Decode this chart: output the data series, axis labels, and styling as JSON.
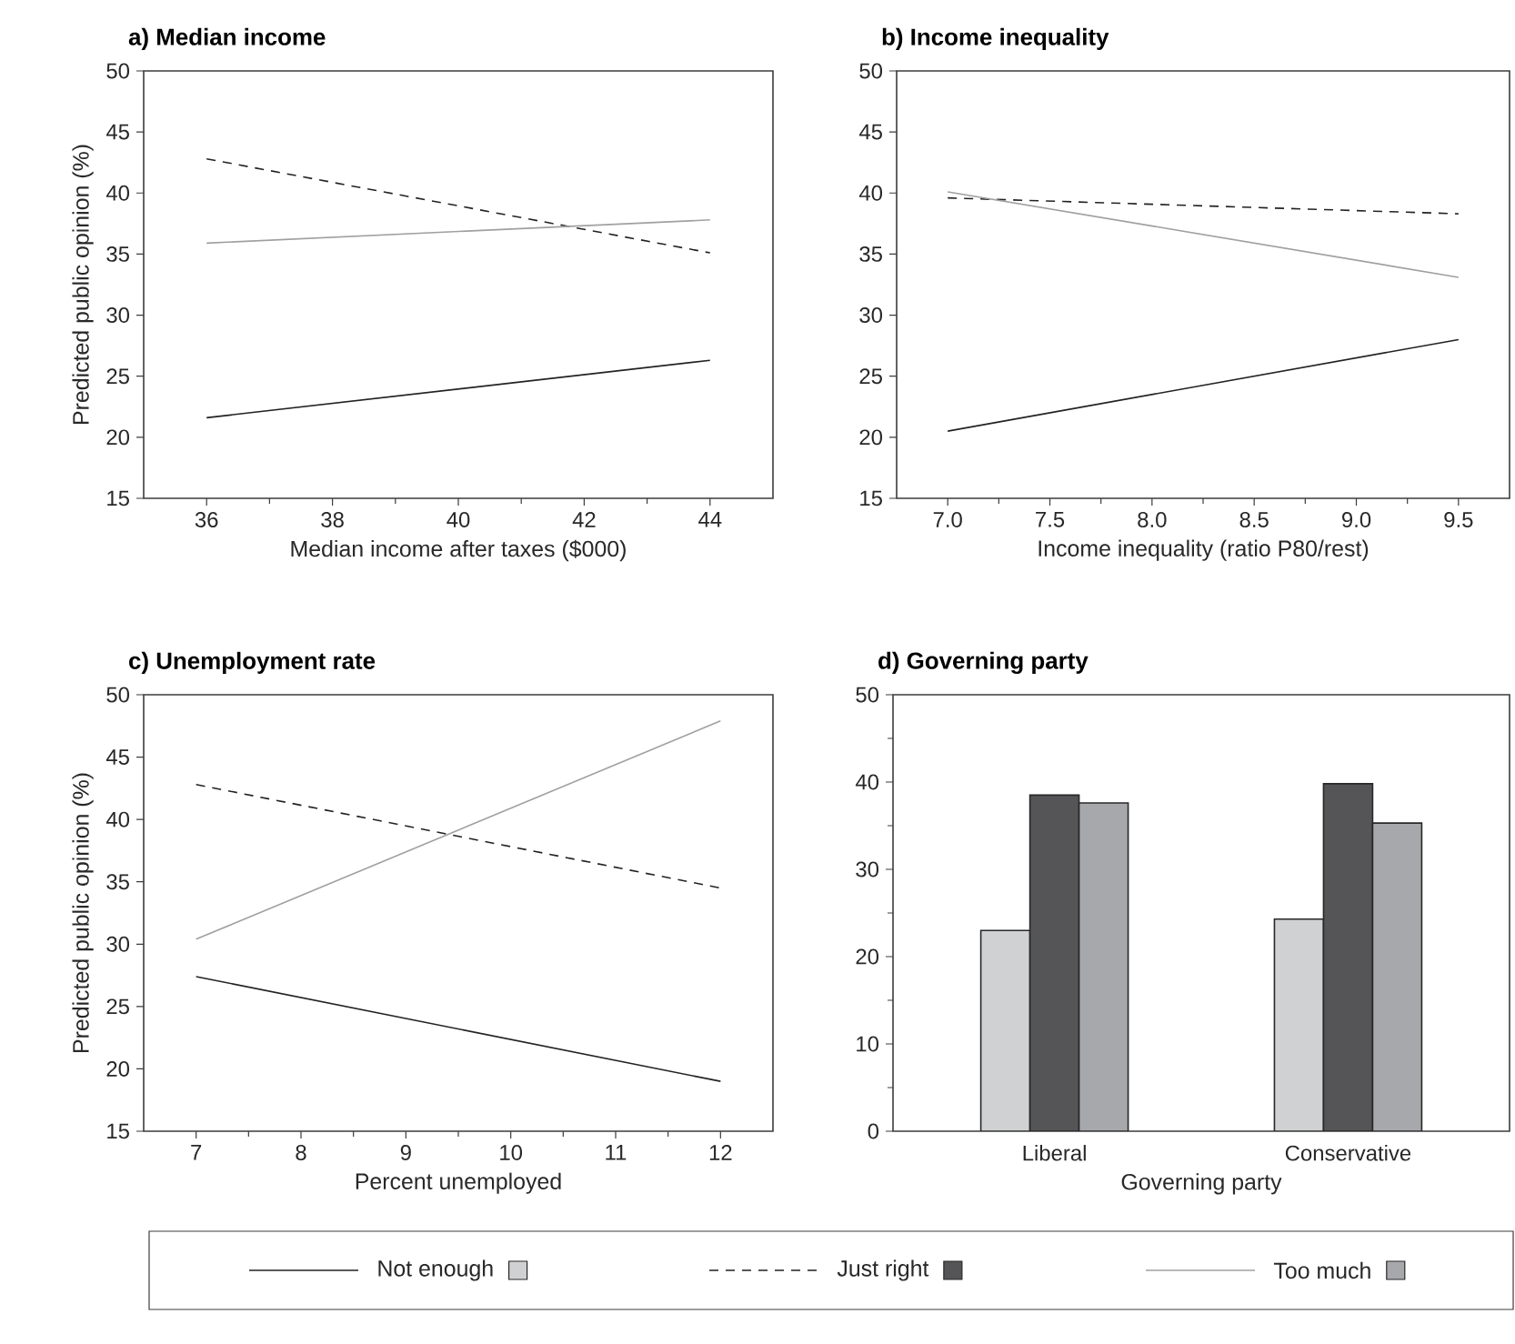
{
  "chart_data": [
    {
      "type": "line",
      "title": "a) Median  income",
      "xlabel": "Median income after taxes ($000)",
      "ylabel": "Predicted public opinion (%)",
      "x": [
        36,
        44
      ],
      "xlim": [
        35,
        45
      ],
      "xticks": [
        36,
        38,
        40,
        42,
        44
      ],
      "ylim": [
        15,
        50
      ],
      "yticks": [
        15,
        20,
        25,
        30,
        35,
        40,
        45,
        50
      ],
      "legend": "bottom",
      "series": [
        {
          "name": "Not enough",
          "color": "#222222",
          "line_style": "solid",
          "values": [
            21.6,
            26.3
          ]
        },
        {
          "name": "Just right",
          "color": "#222222",
          "line_style": "dashed",
          "values": [
            42.8,
            35.1
          ]
        },
        {
          "name": "Too much",
          "color": "#a0a0a0",
          "line_style": "solid",
          "values": [
            35.9,
            37.8
          ]
        }
      ]
    },
    {
      "type": "line",
      "title": "b) Income inequality",
      "xlabel": "Income inequality (ratio P80/rest)",
      "x": [
        7.0,
        9.5
      ],
      "xlim": [
        6.75,
        9.75
      ],
      "xticks": [
        {
          "value": 7.0,
          "label": "7.0"
        },
        {
          "value": 7.5,
          "label": "7.5"
        },
        {
          "value": 8.0,
          "label": "8.0"
        },
        {
          "value": 8.5,
          "label": "8.5"
        },
        {
          "value": 9.0,
          "label": "9.0"
        },
        {
          "value": 9.5,
          "label": "9.5"
        }
      ],
      "ylim": [
        15,
        50
      ],
      "yticks": [
        15,
        20,
        25,
        30,
        35,
        40,
        45,
        50
      ],
      "series": [
        {
          "color": "#222222",
          "line_style": "solid",
          "values": [
            20.5,
            28.0
          ]
        },
        {
          "color": "#222222",
          "line_style": "dashed",
          "values": [
            39.6,
            38.3
          ]
        },
        {
          "color": "#a0a0a0",
          "line_style": "solid",
          "values": [
            40.1,
            33.1
          ]
        }
      ]
    },
    {
      "type": "line",
      "title": "c) Unemployment rate",
      "xlabel": "Percent unemployed",
      "ylabel": "Predicted public opinion (%)",
      "x": [
        7,
        12
      ],
      "xlim": [
        6.5,
        12.5
      ],
      "xticks": [
        7,
        8,
        9,
        10,
        11,
        12
      ],
      "ylim": [
        15,
        50
      ],
      "yticks": [
        15,
        20,
        25,
        30,
        35,
        40,
        45,
        50
      ],
      "series": [
        {
          "color": "#222222",
          "line_style": "solid",
          "values": [
            27.4,
            19.0
          ]
        },
        {
          "color": "#222222",
          "line_style": "dashed",
          "values": [
            42.8,
            34.5
          ]
        },
        {
          "color": "#a0a0a0",
          "line_style": "solid",
          "values": [
            30.4,
            47.9
          ]
        }
      ]
    },
    {
      "type": "bar",
      "title": "d) Governing party",
      "xlabel": "Governing party",
      "categories": [
        "Liberal",
        "Conservative"
      ],
      "ylim": [
        0,
        50
      ],
      "yticks": [
        0,
        10,
        20,
        30,
        40,
        50
      ],
      "series": [
        {
          "color": "#d0d1d3",
          "values": [
            23.0,
            24.3
          ]
        },
        {
          "color": "#555557",
          "values": [
            38.5,
            39.8
          ]
        },
        {
          "color": "#a7a8ab",
          "values": [
            37.6,
            35.3
          ]
        }
      ]
    }
  ]
}
